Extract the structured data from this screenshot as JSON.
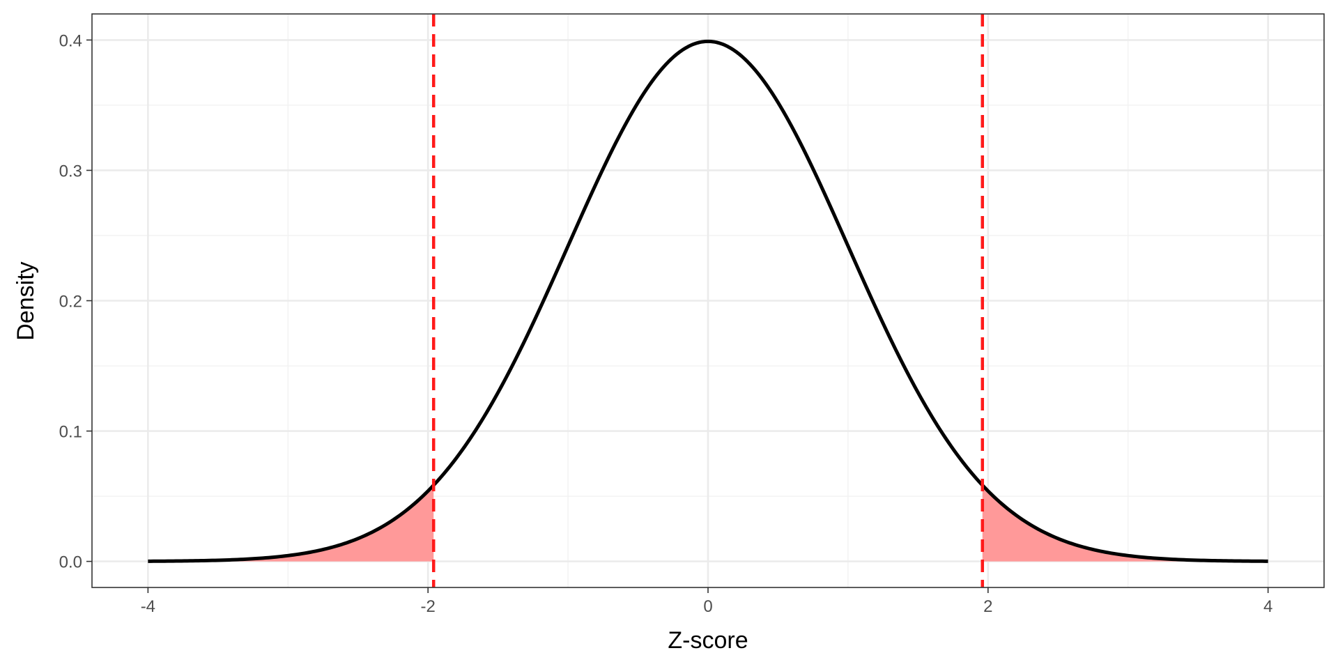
{
  "chart_data": {
    "type": "line",
    "title": "",
    "xlabel": "Z-score",
    "ylabel": "Density",
    "xlim": [
      -4.4,
      4.4
    ],
    "ylim": [
      -0.02,
      0.42
    ],
    "x_ticks": [
      -4,
      -2,
      0,
      2,
      4
    ],
    "x_tick_labels": [
      "-4",
      "-2",
      "0",
      "2",
      "4"
    ],
    "y_ticks": [
      0.0,
      0.1,
      0.2,
      0.3,
      0.4
    ],
    "y_tick_labels": [
      "0.0",
      "0.1",
      "0.2",
      "0.3",
      "0.4"
    ],
    "grid": true,
    "legend": "none",
    "curve": {
      "distribution": "standard normal density",
      "x_range": [
        -4,
        4
      ],
      "color": "#000000"
    },
    "critical_values": [
      -1.96,
      1.96
    ],
    "critical_line_color": "#ff1a1a",
    "tail_fill_color": "#ff9999",
    "points": [
      {
        "x": -4,
        "y": 0.0001
      },
      {
        "x": -3,
        "y": 0.0044
      },
      {
        "x": -2,
        "y": 0.054
      },
      {
        "x": -1,
        "y": 0.242
      },
      {
        "x": 0,
        "y": 0.399
      },
      {
        "x": 1,
        "y": 0.242
      },
      {
        "x": 2,
        "y": 0.054
      },
      {
        "x": 3,
        "y": 0.0044
      },
      {
        "x": 4,
        "y": 0.0001
      }
    ]
  }
}
